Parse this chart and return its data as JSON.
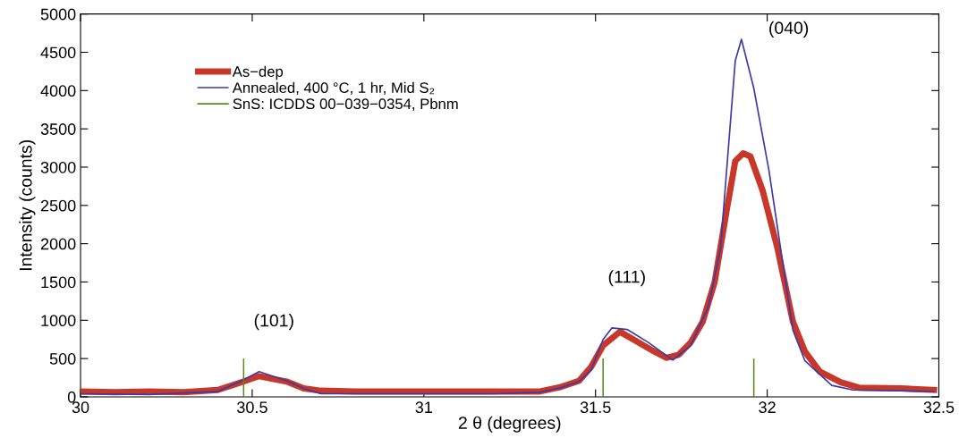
{
  "chart_data": {
    "type": "line",
    "xlabel": "2 θ (degrees)",
    "ylabel": "Intensity (counts)",
    "xlim": [
      30,
      32.5
    ],
    "xticks": [
      30,
      30.5,
      31,
      31.5,
      32,
      32.5
    ],
    "ylim": [
      0,
      5000
    ],
    "yticks": [
      0,
      500,
      1000,
      1500,
      2000,
      2500,
      3000,
      3500,
      4000,
      4500,
      5000
    ],
    "grid": false,
    "legend": "top left",
    "marker": "none",
    "line_style": "solid",
    "series": [
      {
        "name": "As−dep",
        "color": "#c8382a",
        "x": [
          30,
          30.1,
          30.2,
          30.3,
          30.4,
          30.475,
          30.52,
          30.6,
          30.65,
          30.7,
          30.8,
          31,
          31.163,
          31.338,
          31.4,
          31.452,
          31.487,
          31.522,
          31.571,
          31.618,
          31.672,
          31.706,
          31.742,
          31.777,
          31.812,
          31.847,
          31.881,
          31.907,
          31.93,
          31.951,
          31.987,
          32.03,
          32.075,
          32.11,
          32.153,
          32.214,
          32.267,
          32.39,
          32.486
        ],
        "values": [
          70,
          60,
          70,
          60,
          90,
          200,
          270,
          200,
          110,
          80,
          70,
          70,
          70,
          70,
          130,
          210,
          390,
          670,
          850,
          730,
          590,
          510,
          550,
          710,
          980,
          1500,
          2410,
          3080,
          3180,
          3140,
          2690,
          1940,
          980,
          590,
          330,
          190,
          120,
          110,
          90
        ]
      },
      {
        "name": "Annealed, 400 °C, 1 hr, Mid S₂",
        "color": "#3a3aa8",
        "x": [
          30,
          30.2,
          30.4,
          30.475,
          30.52,
          30.6,
          30.65,
          30.7,
          30.8,
          31,
          31.2,
          31.338,
          31.4,
          31.452,
          31.487,
          31.522,
          31.548,
          31.592,
          31.654,
          31.725,
          31.777,
          31.829,
          31.864,
          31.907,
          31.925,
          31.961,
          32.005,
          32.039,
          32.075,
          32.11,
          32.188,
          32.25,
          32.486
        ],
        "values": [
          40,
          30,
          70,
          220,
          330,
          210,
          110,
          40,
          40,
          40,
          40,
          60,
          120,
          200,
          350,
          750,
          900,
          880,
          710,
          480,
          670,
          1180,
          1940,
          4390,
          4670,
          4030,
          2960,
          1940,
          870,
          470,
          150,
          90,
          70
        ]
      },
      {
        "name": "SnS: ICDDS 00−039−0354, Pbnm",
        "type": "bar",
        "color": "#5a8a1a",
        "x": [
          30.475,
          31.522,
          31.961
        ],
        "values": [
          500,
          500,
          500
        ]
      }
    ],
    "annotations": [
      {
        "text": "(101)",
        "x": 30.52,
        "y": 330
      },
      {
        "text": "(111)",
        "x": 31.548,
        "y": 900
      },
      {
        "text": "(040)",
        "x": 31.925,
        "y": 4670
      }
    ]
  }
}
